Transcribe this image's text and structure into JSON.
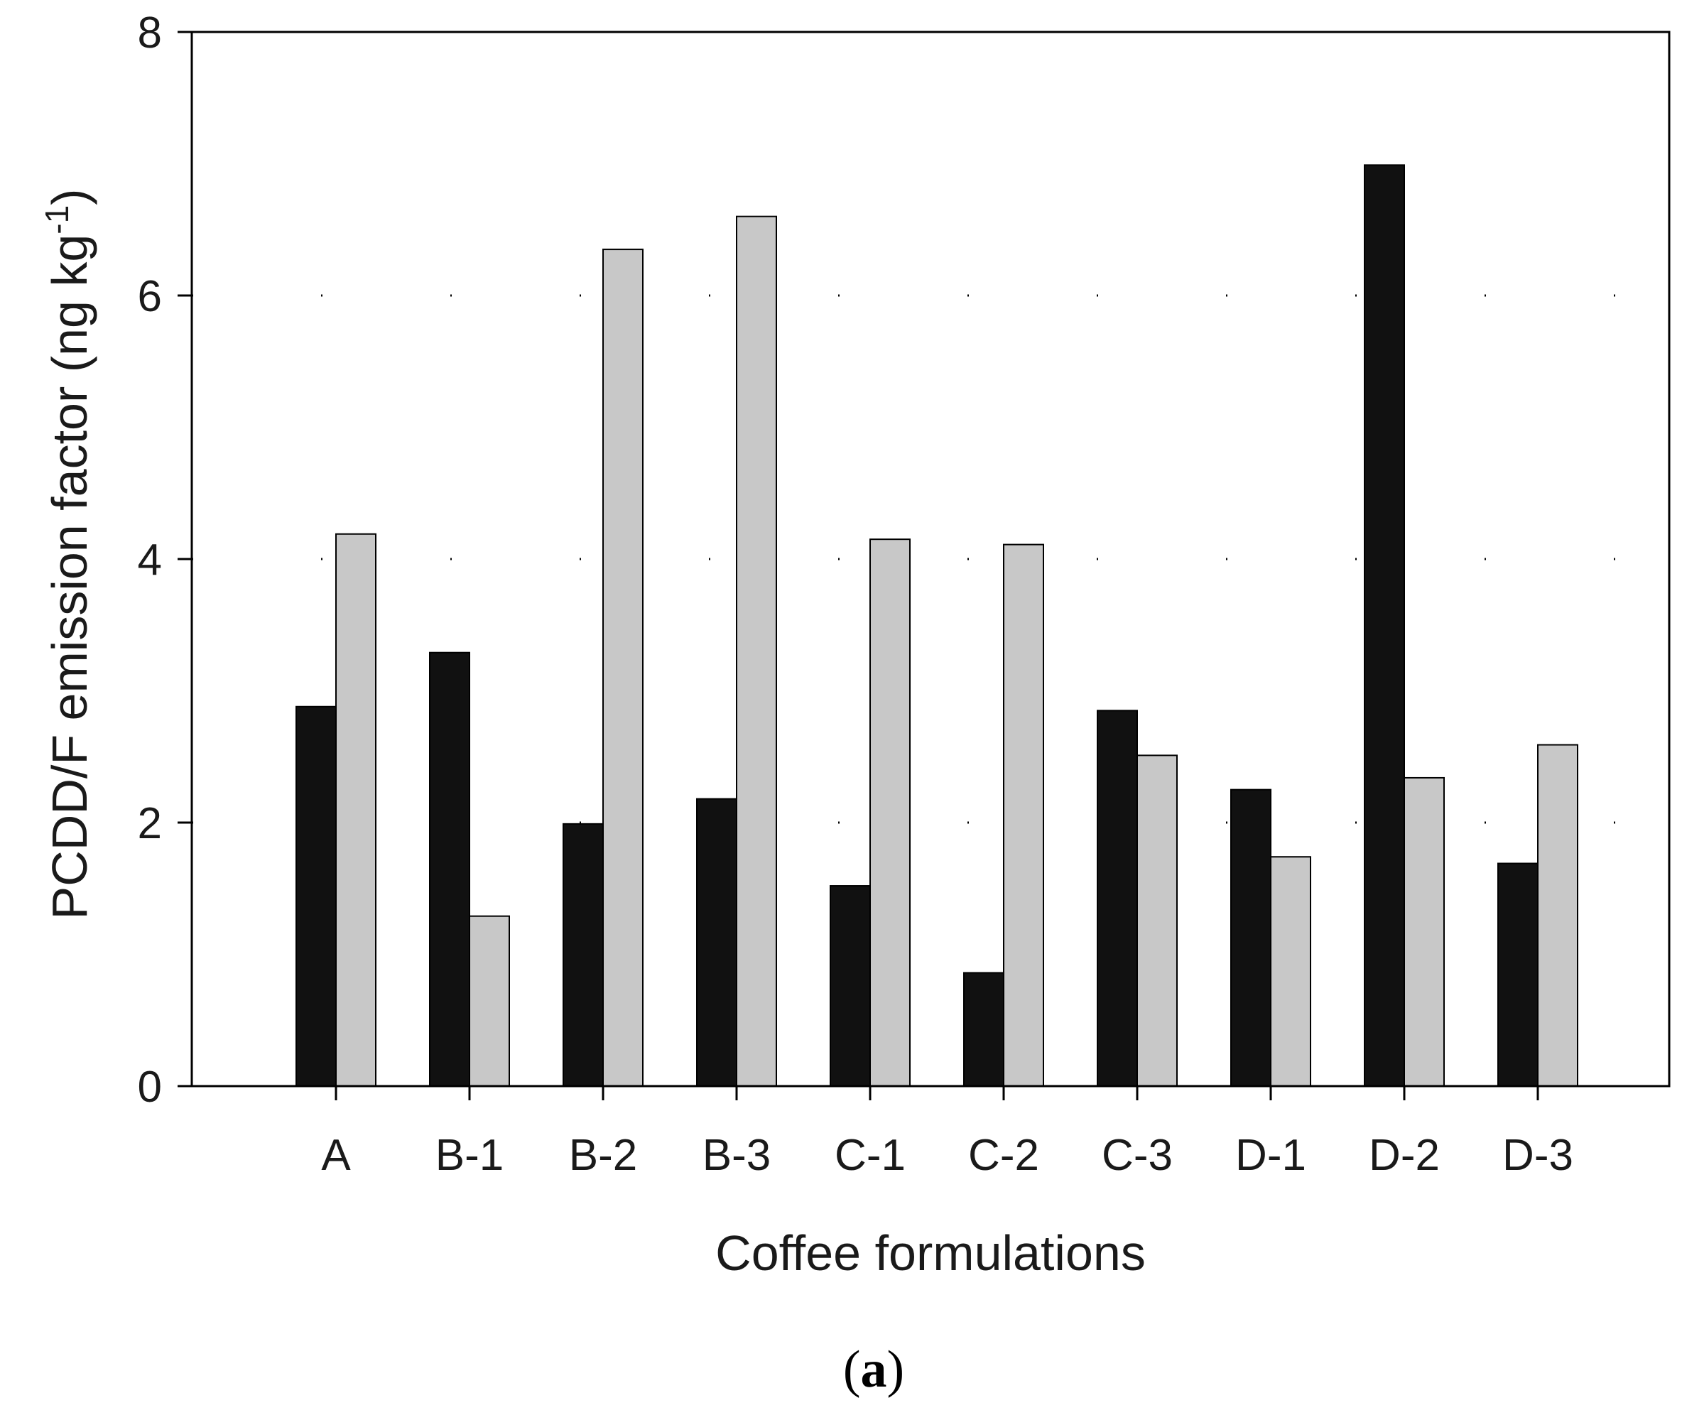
{
  "chart_data": {
    "type": "bar",
    "title": "",
    "xlabel": "Coffee formulations",
    "ylabel": "PCDD/F emission factor (ng kg",
    "ylabel_superscript": "-1",
    "ylabel_close": ")",
    "ylim": [
      0,
      8
    ],
    "yticks": [
      0,
      2,
      4,
      6,
      8
    ],
    "grid": "dotted horizontal",
    "categories": [
      "A",
      "B-1",
      "B-2",
      "B-3",
      "C-1",
      "C-2",
      "C-3",
      "D-1",
      "D-2",
      "D-3"
    ],
    "series": [
      {
        "name": "series-1",
        "color": "#111111",
        "values": [
          2.88,
          3.29,
          1.99,
          2.18,
          1.52,
          0.86,
          2.85,
          2.25,
          6.99,
          1.69
        ]
      },
      {
        "name": "series-2",
        "color": "#c8c8c8",
        "values": [
          4.19,
          1.29,
          6.35,
          6.6,
          4.15,
          4.11,
          2.51,
          1.74,
          2.34,
          2.59
        ]
      }
    ]
  },
  "panel_label": {
    "open": "(",
    "letter": "a",
    "close": ")"
  }
}
